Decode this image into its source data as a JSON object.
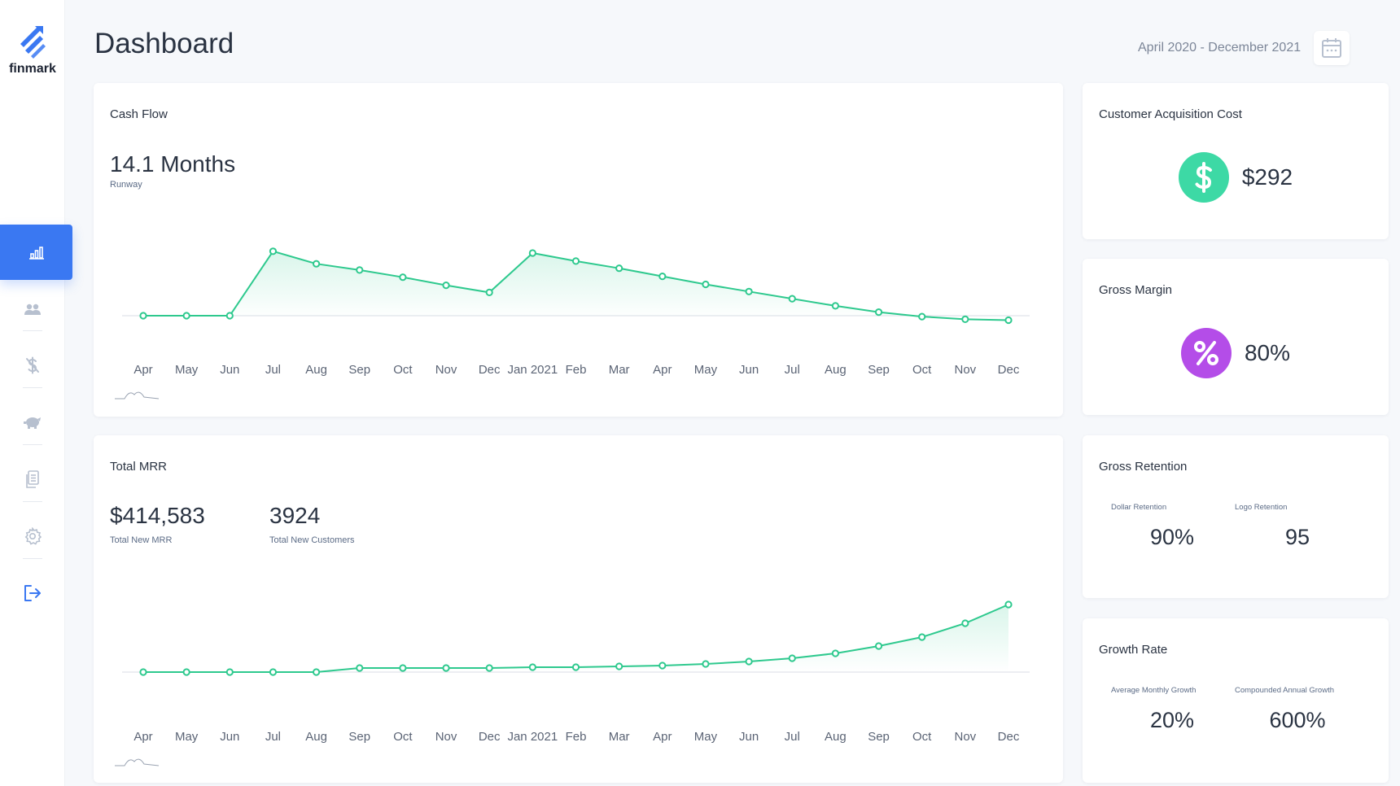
{
  "brand": {
    "name": "finmark"
  },
  "header": {
    "title": "Dashboard",
    "date_range": "April 2020 - December 2021"
  },
  "nav": {
    "items": [
      {
        "name": "dashboard",
        "icon": "bar-chart-icon",
        "active": true
      },
      {
        "name": "customers",
        "icon": "users-icon"
      },
      {
        "name": "expenses",
        "icon": "dollar-slash-icon"
      },
      {
        "name": "savings",
        "icon": "piggy-bank-icon"
      },
      {
        "name": "reports",
        "icon": "document-icon"
      },
      {
        "name": "settings",
        "icon": "gear-icon"
      },
      {
        "name": "logout",
        "icon": "logout-icon"
      }
    ]
  },
  "colors": {
    "accent": "#3a78f2",
    "line": "#2ec98e",
    "cac": "#3dd9a5",
    "margin": "#b44de8"
  },
  "cash_flow": {
    "title": "Cash Flow",
    "runway_value": "14.1 Months",
    "runway_label": "Runway"
  },
  "total_mrr": {
    "title": "Total MRR",
    "new_mrr_value": "$414,583",
    "new_mrr_label": "Total New MRR",
    "new_customers_value": "3924",
    "new_customers_label": "Total New Customers"
  },
  "cac": {
    "title": "Customer Acquisition Cost",
    "value": "$292",
    "icon": "dollar-icon"
  },
  "gross_margin": {
    "title": "Gross Margin",
    "value": "80%",
    "icon": "percent-icon"
  },
  "gross_retention": {
    "title": "Gross Retention",
    "dollar_label": "Dollar Retention",
    "dollar_value": "90%",
    "logo_label": "Logo Retention",
    "logo_value": "95"
  },
  "growth_rate": {
    "title": "Growth Rate",
    "monthly_label": "Average Monthly Growth",
    "monthly_value": "20%",
    "annual_label": "Compounded Annual Growth",
    "annual_value": "600%"
  },
  "chart_data": [
    {
      "type": "line",
      "title": "Cash Flow",
      "categories": [
        "Apr",
        "May",
        "Jun",
        "Jul",
        "Aug",
        "Sep",
        "Oct",
        "Nov",
        "Dec",
        "Jan 2021",
        "Feb",
        "Mar",
        "Apr",
        "May",
        "Jun",
        "Jul",
        "Aug",
        "Sep",
        "Oct",
        "Nov",
        "Dec"
      ],
      "values": [
        0,
        0,
        0,
        72,
        58,
        51,
        43,
        34,
        26,
        70,
        61,
        53,
        44,
        35,
        27,
        19,
        11,
        4,
        -1,
        -4,
        -5
      ],
      "grid": false
    },
    {
      "type": "line",
      "title": "Total MRR",
      "categories": [
        "Apr",
        "May",
        "Jun",
        "Jul",
        "Aug",
        "Sep",
        "Oct",
        "Nov",
        "Dec",
        "Jan 2021",
        "Feb",
        "Mar",
        "Apr",
        "May",
        "Jun",
        "Jul",
        "Aug",
        "Sep",
        "Oct",
        "Nov",
        "Dec"
      ],
      "values": [
        0,
        0,
        0,
        0,
        0,
        5,
        5,
        5,
        5,
        6,
        6,
        7,
        8,
        10,
        13,
        17,
        23,
        32,
        43,
        60,
        83
      ],
      "grid": false
    }
  ]
}
